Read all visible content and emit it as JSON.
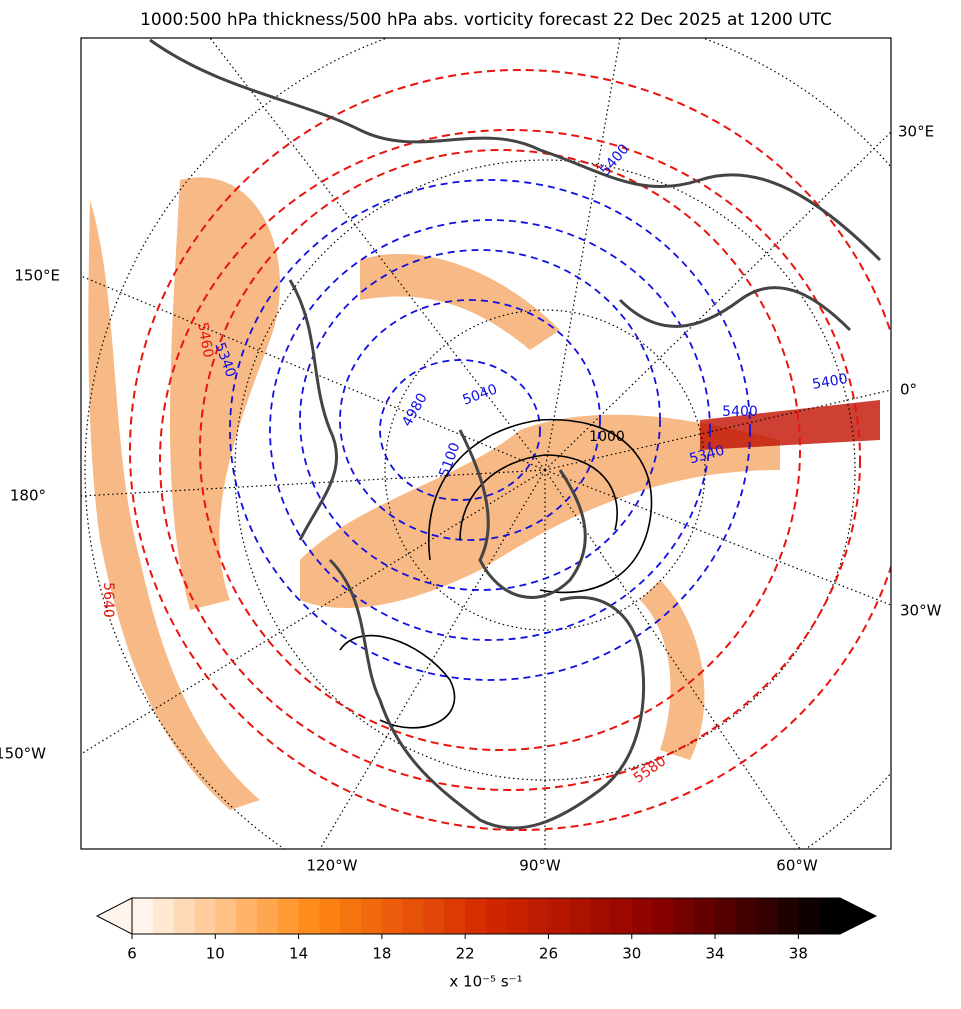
{
  "title": "1000:500 hPa thickness/500 hPa abs. vorticity forecast 22 Dec 2025 at 1200 UTC",
  "map": {
    "lon_labels": [
      "30°E",
      "150°E",
      "0°",
      "180°",
      "30°W",
      "150°W",
      "120°W",
      "90°W",
      "60°W"
    ],
    "contour_labels": [
      {
        "text": "5400",
        "color": "#1010e0"
      },
      {
        "text": "5340",
        "color": "#1010e0"
      },
      {
        "text": "5040",
        "color": "#1010e0"
      },
      {
        "text": "5100",
        "color": "#1010e0"
      },
      {
        "text": "4980",
        "color": "#1010e0"
      },
      {
        "text": "5400",
        "color": "#1010e0"
      },
      {
        "text": "5400",
        "color": "#1010e0"
      },
      {
        "text": "5340",
        "color": "#1010e0"
      },
      {
        "text": "1000",
        "color": "#000000"
      },
      {
        "text": "5580",
        "color": "#e8140e"
      },
      {
        "text": "5640",
        "color": "#e8140e"
      },
      {
        "text": "5460",
        "color": "#e8140e"
      }
    ]
  },
  "colorbar": {
    "range": [
      6,
      40
    ],
    "ticks": [
      6,
      10,
      14,
      18,
      22,
      26,
      30,
      34,
      38
    ],
    "colors": [
      "#fff4ec",
      "#ff8a14",
      "#d42800",
      "#8a0000",
      "#000000"
    ],
    "label": "x 10⁻⁵ s⁻¹"
  }
}
